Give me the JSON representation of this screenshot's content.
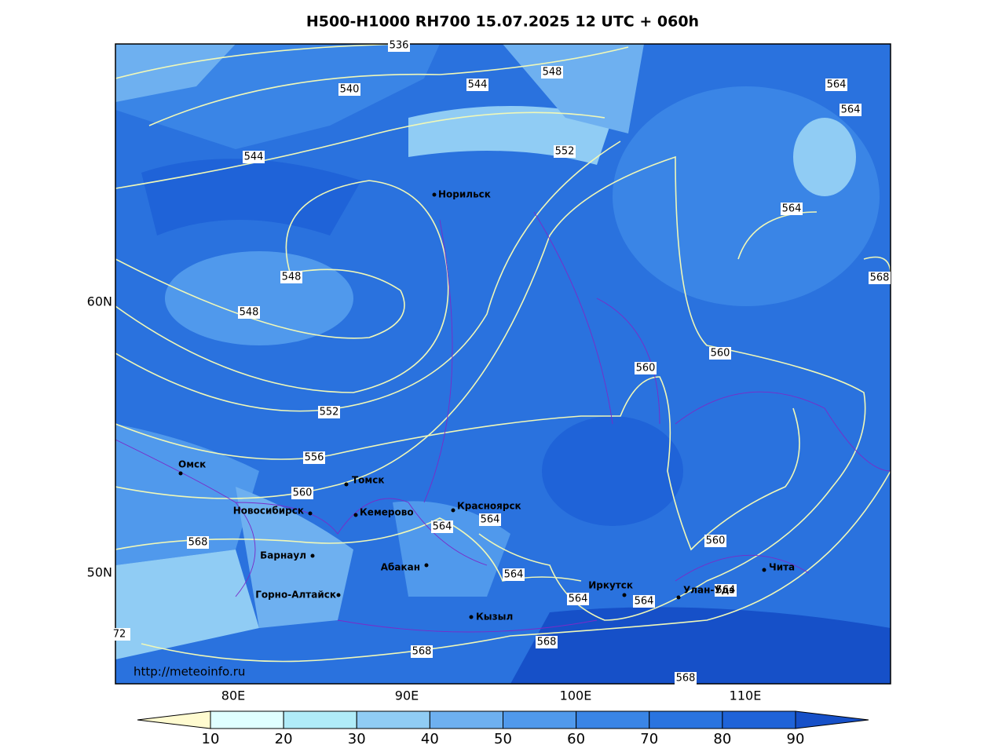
{
  "header": {
    "title": "H500-H1000 RH700 15.07.2025 12 UTC + 060h"
  },
  "map": {
    "cities": [
      "Норильск",
      "Омск",
      "Томск",
      "Новосибирск",
      "Кемерово",
      "Красноярск",
      "Барнаул",
      "Абакан",
      "Горно-Алтайск",
      "Кызыл",
      "Иркутск",
      "Улан-Удэ",
      "Чита"
    ],
    "contour_labels": [
      "536",
      "540",
      "544",
      "548",
      "564",
      "564",
      "544",
      "552",
      "564",
      "548",
      "568",
      "548",
      "560",
      "560",
      "552",
      "556",
      "560",
      "564",
      "564",
      "568",
      "560",
      "564",
      "564",
      "564",
      "564",
      "568",
      "568",
      "568",
      "72"
    ],
    "source": "http://meteoinfo.ru"
  },
  "axes": {
    "lon_labels": [
      "80E",
      "90E",
      "100E",
      "110E"
    ],
    "lat_labels": [
      "60N",
      "50N"
    ]
  },
  "colorbar": {
    "ticks": [
      "10",
      "20",
      "30",
      "40",
      "50",
      "60",
      "70",
      "80",
      "90"
    ]
  }
}
